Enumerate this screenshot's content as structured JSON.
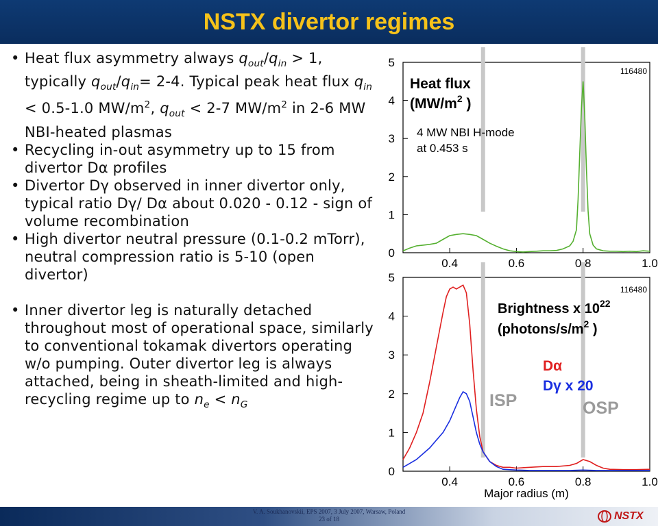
{
  "title": "NSTX divertor regimes",
  "bullets": [
    {
      "pre": "Heat flux asymmetry always ",
      "q1": "q",
      "q1sub": "out",
      "slash1": "/",
      "q2": "q",
      "q2sub": "in",
      "mid1": " > 1, typically ",
      "q3": "q",
      "q3sub": "out",
      "slash2": "/",
      "q4": "q",
      "q4sub": "in",
      "mid2": "= 2-4. Typical peak heat flux ",
      "q5": "q",
      "q5sub": "in",
      "mid3": " <  0.5-1.0 MW/m",
      "sup1": "2",
      "mid4": ", ",
      "q6": "q",
      "q6sub": "out",
      "mid5": " <  2-7 MW/m",
      "sup2": "2",
      "post": " in 2-6 MW NBI-heated plasmas"
    },
    {
      "text": "Recycling in-out asymmetry up to 15 from divertor Dα profiles"
    },
    {
      "text": "Divertor Dγ observed in inner divertor only, typical ratio Dγ/ Dα about 0.020 - 0.12 - sign of volume recombination"
    },
    {
      "text": "High divertor neutral pressure (0.1-0.2 mTorr), neutral compression ratio is 5-10 (open divertor)"
    },
    {
      "pre": "Inner divertor leg is naturally detached throughout most of operational space, similarly to conventional tokamak divertors operating w/o pumping. Outer divertor leg is always attached, being in sheath-limited and high-recycling regime up to ",
      "n1": "n",
      "n1sub": "e",
      "lt": " < ",
      "n2": "n",
      "n2sub": "G"
    }
  ],
  "chart_data": [
    {
      "type": "line",
      "shot": "116480",
      "title_line1": "Heat flux",
      "title_line2": "(MW/m",
      "title_sup": "2",
      "title_end": " )",
      "annotation_line1": "4 MW NBI H-mode",
      "annotation_line2": "at 0.453 s",
      "xlim": [
        0.26,
        1.0
      ],
      "ylim": [
        0,
        5
      ],
      "xticks": [
        "0.4",
        "0.6",
        "0.8",
        "1.0"
      ],
      "xtick_values": [
        0.4,
        0.6,
        0.8,
        1.0
      ],
      "yticks": [
        "0",
        "1",
        "2",
        "3",
        "4",
        "5"
      ],
      "ytick_values": [
        0,
        1,
        2,
        3,
        4,
        5
      ],
      "series": [
        {
          "color": "#55b030",
          "x": [
            0.26,
            0.28,
            0.3,
            0.32,
            0.34,
            0.36,
            0.38,
            0.4,
            0.42,
            0.44,
            0.46,
            0.48,
            0.5,
            0.52,
            0.54,
            0.56,
            0.58,
            0.6,
            0.62,
            0.64,
            0.66,
            0.68,
            0.7,
            0.72,
            0.74,
            0.76,
            0.77,
            0.78,
            0.785,
            0.79,
            0.795,
            0.8,
            0.805,
            0.81,
            0.815,
            0.82,
            0.83,
            0.84,
            0.86,
            0.88,
            0.9,
            0.92,
            0.94,
            0.96,
            0.98,
            1.0
          ],
          "y": [
            0.05,
            0.12,
            0.18,
            0.2,
            0.22,
            0.25,
            0.35,
            0.45,
            0.48,
            0.5,
            0.48,
            0.45,
            0.35,
            0.25,
            0.17,
            0.1,
            0.05,
            0.03,
            0.02,
            0.03,
            0.04,
            0.05,
            0.05,
            0.06,
            0.1,
            0.18,
            0.3,
            0.6,
            1.4,
            2.6,
            3.8,
            4.5,
            3.6,
            2.2,
            1.1,
            0.5,
            0.2,
            0.1,
            0.05,
            0.04,
            0.04,
            0.03,
            0.04,
            0.03,
            0.05,
            0.04
          ]
        }
      ],
      "vlines": [
        0.5,
        0.8
      ],
      "vline_color": "#c8c8c8"
    },
    {
      "type": "line",
      "shot": "116480",
      "title_line1": "Brightness x 10",
      "title_sup1": "22",
      "title_line2": "(photons/s/m",
      "title_sup2": "2",
      "title_end": " )",
      "legend": [
        {
          "label": "Dα",
          "color": "#e02020"
        },
        {
          "label": "Dγ x 20",
          "color": "#1a2fe0"
        }
      ],
      "label_isp": "ISP",
      "label_osp": "OSP",
      "label_color": "#9a9a9a",
      "xlabel": "Major radius (m)",
      "xlim": [
        0.26,
        1.0
      ],
      "ylim": [
        0,
        5
      ],
      "xticks": [
        "0.4",
        "0.6",
        "0.8",
        "1.0"
      ],
      "xtick_values": [
        0.4,
        0.6,
        0.8,
        1.0
      ],
      "yticks": [
        "0",
        "1",
        "2",
        "3",
        "4",
        "5"
      ],
      "ytick_values": [
        0,
        1,
        2,
        3,
        4,
        5
      ],
      "series": [
        {
          "name": "Dα",
          "color": "#e02020",
          "x": [
            0.26,
            0.28,
            0.3,
            0.32,
            0.34,
            0.36,
            0.38,
            0.39,
            0.4,
            0.41,
            0.42,
            0.43,
            0.44,
            0.45,
            0.46,
            0.47,
            0.48,
            0.49,
            0.5,
            0.52,
            0.54,
            0.56,
            0.58,
            0.6,
            0.64,
            0.68,
            0.72,
            0.76,
            0.78,
            0.8,
            0.82,
            0.84,
            0.86,
            0.88,
            0.92,
            0.96,
            1.0
          ],
          "y": [
            0.3,
            0.6,
            1.0,
            1.5,
            2.3,
            3.2,
            4.1,
            4.5,
            4.7,
            4.75,
            4.7,
            4.75,
            4.8,
            4.6,
            3.8,
            2.6,
            1.6,
            0.9,
            0.5,
            0.25,
            0.15,
            0.1,
            0.1,
            0.08,
            0.1,
            0.12,
            0.12,
            0.15,
            0.2,
            0.3,
            0.25,
            0.15,
            0.08,
            0.05,
            0.04,
            0.04,
            0.05
          ]
        },
        {
          "name": "Dγ x 20",
          "color": "#1a2fe0",
          "x": [
            0.26,
            0.28,
            0.3,
            0.32,
            0.34,
            0.36,
            0.38,
            0.4,
            0.42,
            0.43,
            0.44,
            0.45,
            0.46,
            0.47,
            0.48,
            0.49,
            0.5,
            0.52,
            0.54,
            0.56,
            0.6,
            0.64,
            0.68,
            0.72,
            0.76,
            0.8,
            0.84,
            0.88,
            0.92,
            0.96,
            1.0
          ],
          "y": [
            0.1,
            0.2,
            0.3,
            0.45,
            0.6,
            0.8,
            1.0,
            1.3,
            1.7,
            1.9,
            2.05,
            2.0,
            1.8,
            1.4,
            1.0,
            0.7,
            0.5,
            0.25,
            0.12,
            0.05,
            0.03,
            0.02,
            0.02,
            0.02,
            0.02,
            0.03,
            0.02,
            0.02,
            0.02,
            0.02,
            0.02
          ]
        }
      ],
      "vlines": [
        0.5,
        0.8
      ],
      "vline_color": "#c8c8c8"
    }
  ],
  "footer": {
    "line1": "V. A. Soukhanovskii, EPS 2007, 3 July 2007, Warsaw, Poland",
    "line2": "23 of 18",
    "logo": "NSTX"
  },
  "colors": {
    "title_bg": "#0e3a73",
    "title_text": "#f6c21a"
  }
}
